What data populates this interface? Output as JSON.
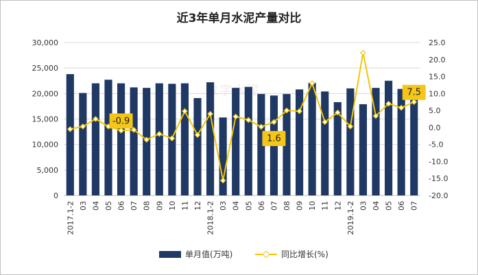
{
  "chart_data": {
    "type": "bar+line",
    "title": "近3年单月水泥产量对比",
    "categories": [
      "2017.1-2",
      "03",
      "04",
      "05",
      "06",
      "07",
      "08",
      "09",
      "10",
      "11",
      "12",
      "2018.1-2",
      "03",
      "04",
      "05",
      "06",
      "07",
      "08",
      "09",
      "10",
      "11",
      "12",
      "2019.1-2",
      "03",
      "04",
      "05",
      "06",
      "07"
    ],
    "series": [
      {
        "name": "单月值(万吨)",
        "type": "bar",
        "axis": "left",
        "color": "#1f3864",
        "values": [
          23800,
          20100,
          22000,
          22700,
          22000,
          21200,
          21100,
          22000,
          21900,
          22000,
          19100,
          22200,
          15300,
          21100,
          21300,
          19900,
          19600,
          19900,
          20800,
          22100,
          20400,
          18300,
          21000,
          17900,
          21100,
          22500,
          20900,
          20300
        ]
      },
      {
        "name": "同比增长(%)",
        "type": "line",
        "axis": "right",
        "color": "#f2c500",
        "values": [
          -0.5,
          0.3,
          2.5,
          0.3,
          -0.9,
          -0.7,
          -3.6,
          -1.9,
          -3.2,
          4.8,
          -2.2,
          4.0,
          -15.6,
          3.2,
          2.2,
          0.2,
          1.6,
          5.0,
          4.8,
          13.0,
          1.6,
          4.4,
          0.3,
          22.0,
          3.4,
          7.0,
          5.8,
          7.5
        ]
      }
    ],
    "y_left": {
      "min": 0,
      "max": 30000,
      "step": 5000,
      "ticks": [
        "0",
        "5,000",
        "10,000",
        "15,000",
        "20,000",
        "25,000",
        "30,000"
      ]
    },
    "y_right": {
      "min": -20,
      "max": 25,
      "step": 5,
      "ticks": [
        "-20.0",
        "-15.0",
        "-10.0",
        "-5.0",
        "0.0",
        "5.0",
        "10.0",
        "15.0",
        "20.0",
        "25.0"
      ]
    },
    "annotations": [
      {
        "label": "-0.9",
        "index": 4
      },
      {
        "label": "1.6",
        "index": 16
      },
      {
        "label": "7.5",
        "index": 27
      }
    ],
    "grid": "horizontal",
    "legend_position": "bottom"
  },
  "watermark": "数字水泥"
}
